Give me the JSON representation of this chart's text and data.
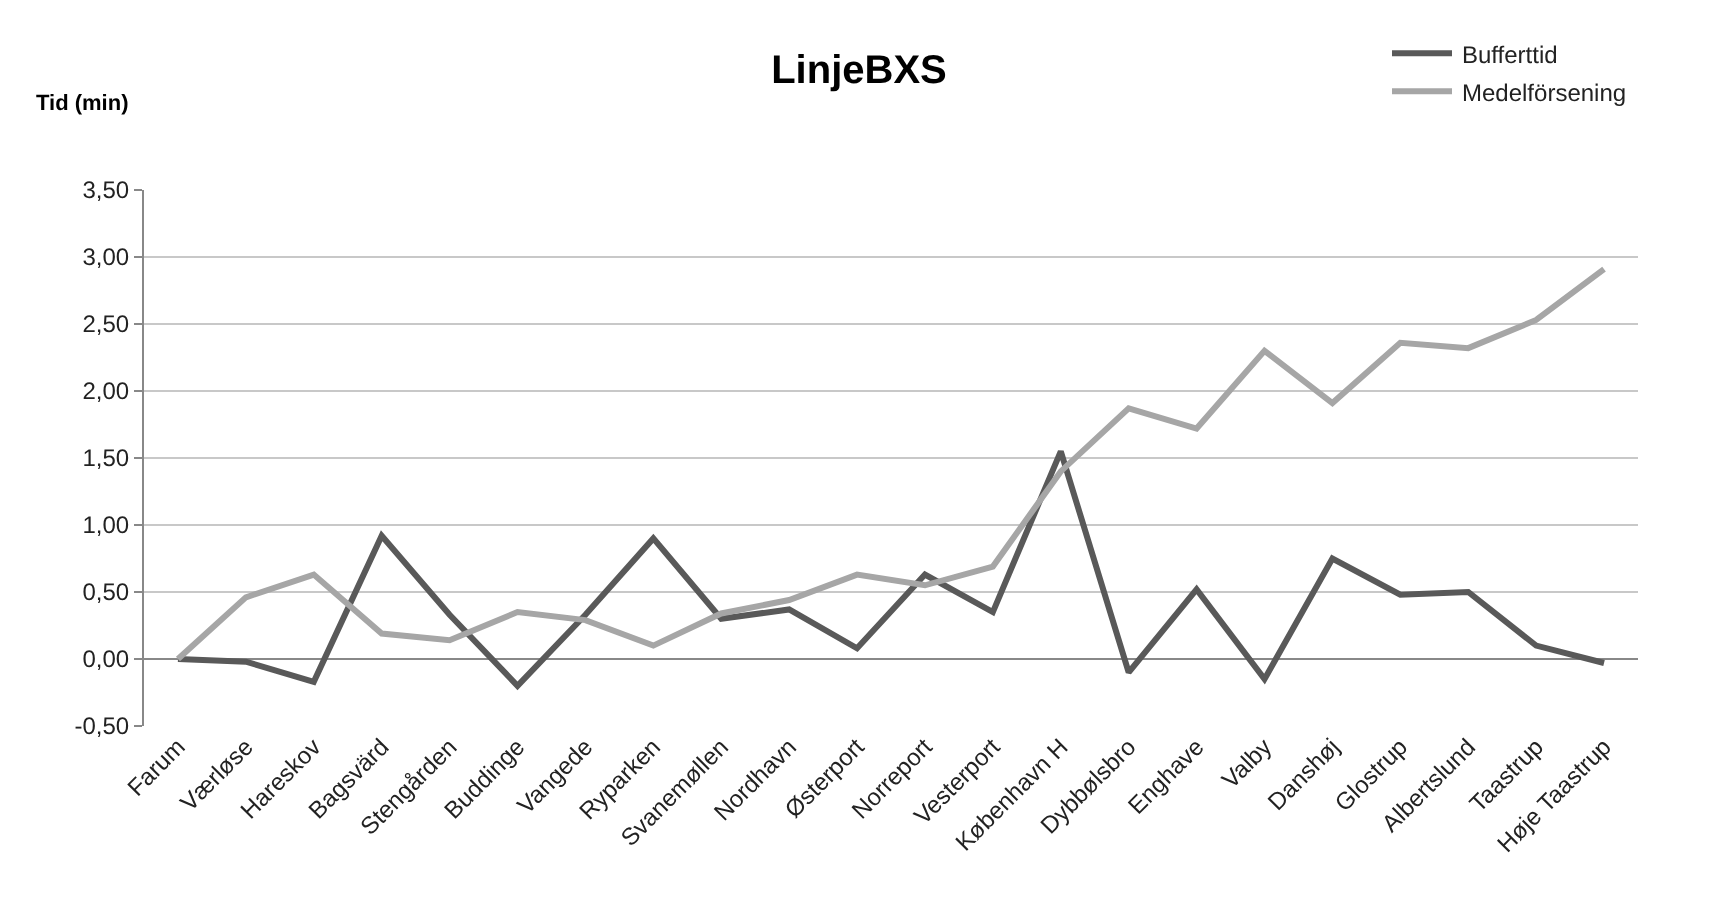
{
  "chart_data": {
    "type": "line",
    "title": "LinjeBXS",
    "ylabel": "Tid (min)",
    "categories": [
      "Farum",
      "Værløse",
      "Hareskov",
      "Bagsvärd",
      "Stengården",
      "Buddinge",
      "Vangede",
      "Ryparken",
      "Svanemøllen",
      "Nordhavn",
      "Østerport",
      "Norreport",
      "Vesterport",
      "København H",
      "Dybbølsbro",
      "Enghave",
      "Valby",
      "Danshøj",
      "Glostrup",
      "Albertslund",
      "Taastrup",
      "Høje Taastrup"
    ],
    "series": [
      {
        "name": "Bufferttid",
        "color": "#595959",
        "values": [
          0,
          -0.02,
          -0.17,
          0.92,
          0.33,
          -0.2,
          0.33,
          0.9,
          0.3,
          0.37,
          0.08,
          0.63,
          0.35,
          1.55,
          -0.1,
          0.52,
          -0.15,
          0.75,
          0.48,
          0.5,
          0.1,
          -0.03
        ]
      },
      {
        "name": "Medelförsening",
        "color": "#a6a6a6",
        "values": [
          0,
          0.46,
          0.63,
          0.19,
          0.14,
          0.35,
          0.29,
          0.1,
          0.34,
          0.44,
          0.63,
          0.55,
          0.69,
          1.4,
          1.87,
          1.72,
          2.3,
          1.91,
          2.36,
          2.32,
          2.53,
          2.91
        ]
      }
    ],
    "ylim": [
      -0.5,
      3.5
    ],
    "yticks": [
      {
        "value": -0.5,
        "label": "-0,50"
      },
      {
        "value": 0,
        "label": "0,00"
      },
      {
        "value": 0.5,
        "label": "0,50"
      },
      {
        "value": 1,
        "label": "1,00"
      },
      {
        "value": 1.5,
        "label": "1,50"
      },
      {
        "value": 2,
        "label": "2,00"
      },
      {
        "value": 2.5,
        "label": "2,50"
      },
      {
        "value": 3,
        "label": "3,00"
      },
      {
        "value": 3.5,
        "label": "3,50"
      }
    ],
    "grid": "y",
    "legend": "top right",
    "marker": "none",
    "line_style": "solid"
  }
}
